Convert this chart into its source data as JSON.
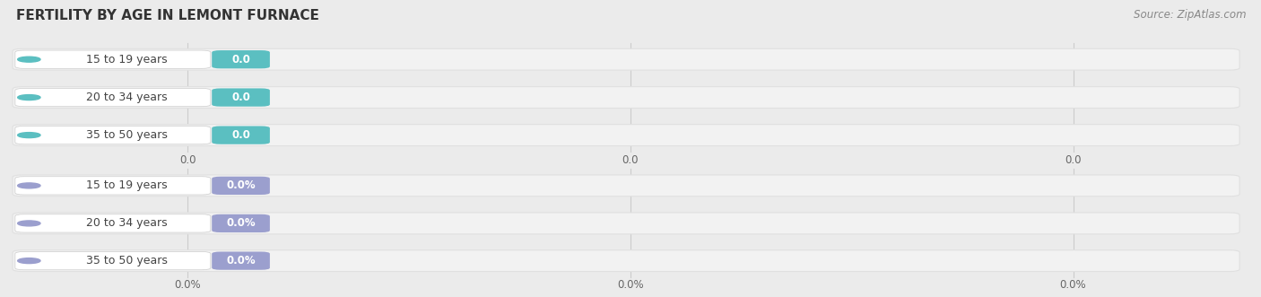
{
  "title": "FERTILITY BY AGE IN LEMONT FURNACE",
  "source_text": "Source: ZipAtlas.com",
  "top_section": {
    "labels": [
      "15 to 19 years",
      "20 to 34 years",
      "35 to 50 years"
    ],
    "values": [
      0.0,
      0.0,
      0.0
    ],
    "bar_color": "#5BBFC1",
    "label_color": "#444444",
    "value_label_color": "#ffffff",
    "x_tick_labels": [
      "0.0",
      "0.0",
      "0.0"
    ]
  },
  "bottom_section": {
    "labels": [
      "15 to 19 years",
      "20 to 34 years",
      "35 to 50 years"
    ],
    "values": [
      0.0,
      0.0,
      0.0
    ],
    "bar_color": "#9B9FCE",
    "label_color": "#444444",
    "value_label_color": "#ffffff",
    "x_tick_labels": [
      "0.0%",
      "0.0%",
      "0.0%"
    ]
  },
  "background_color": "#ebebeb",
  "bar_bg_color": "#f2f2f2",
  "bar_bg_edge_color": "#e0e0e0",
  "title_fontsize": 11,
  "label_fontsize": 9,
  "value_fontsize": 8.5,
  "tick_fontsize": 8.5,
  "source_fontsize": 8.5,
  "fig_width": 14.06,
  "fig_height": 3.31,
  "dpi": 100
}
